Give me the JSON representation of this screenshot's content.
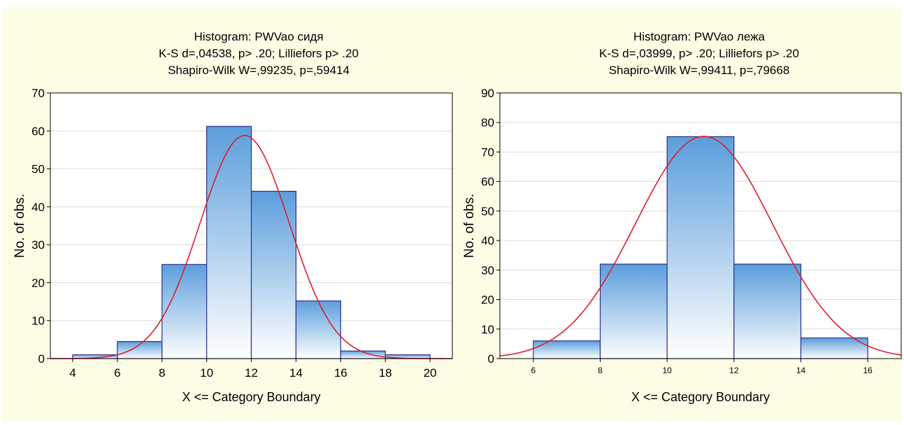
{
  "chart_data": [
    {
      "type": "bar",
      "title": "Histogram: PWVao сидя",
      "subtitle_lines": [
        "K-S d=,04538, p> .20; Lilliefors p> .20",
        "Shapiro-Wilk W=,99235, p=,59414"
      ],
      "xlabel": "X <= Category Boundary",
      "ylabel": "No. of obs.",
      "xlim": [
        3,
        21
      ],
      "ylim": [
        0,
        70
      ],
      "yticks": [
        0,
        10,
        20,
        30,
        40,
        50,
        60,
        70
      ],
      "xticks": [
        4,
        6,
        8,
        10,
        12,
        14,
        16,
        18,
        20
      ],
      "bin_edges": [
        4,
        6,
        8,
        10,
        12,
        14,
        16,
        18,
        20
      ],
      "values": [
        1,
        4.5,
        24.8,
        61.2,
        44.1,
        15.2,
        2,
        1
      ],
      "normal_curve": {
        "mean": 11.7,
        "sd": 2.0,
        "peak": 58.8
      },
      "grid": true
    },
    {
      "type": "bar",
      "title": "Histogram: PWVao лежа",
      "subtitle_lines": [
        "K-S d=,03999, p> .20; Lilliefors p> .20",
        "Shapiro-Wilk W=,99411, p=,79668"
      ],
      "xlabel": "X <= Category Boundary",
      "ylabel": "No. of obs.",
      "xlim": [
        5,
        17
      ],
      "ylim": [
        0,
        90
      ],
      "yticks": [
        0,
        10,
        20,
        30,
        40,
        50,
        60,
        70,
        80,
        90
      ],
      "xticks": [
        6,
        8,
        10,
        12,
        14,
        16
      ],
      "bin_edges": [
        6,
        8,
        10,
        12,
        14,
        16
      ],
      "values": [
        6,
        32,
        75.2,
        32,
        7
      ],
      "normal_curve": {
        "mean": 11.1,
        "sd": 2.05,
        "peak": 75.3
      },
      "grid": true
    }
  ],
  "colors": {
    "background": "#fdfde6",
    "bar_top": "#5b9edc",
    "bar_bottom": "#ffffff",
    "bar_stroke": "#2f2f8f",
    "curve": "#dd1f2a",
    "grid": "#d9d9d9"
  }
}
